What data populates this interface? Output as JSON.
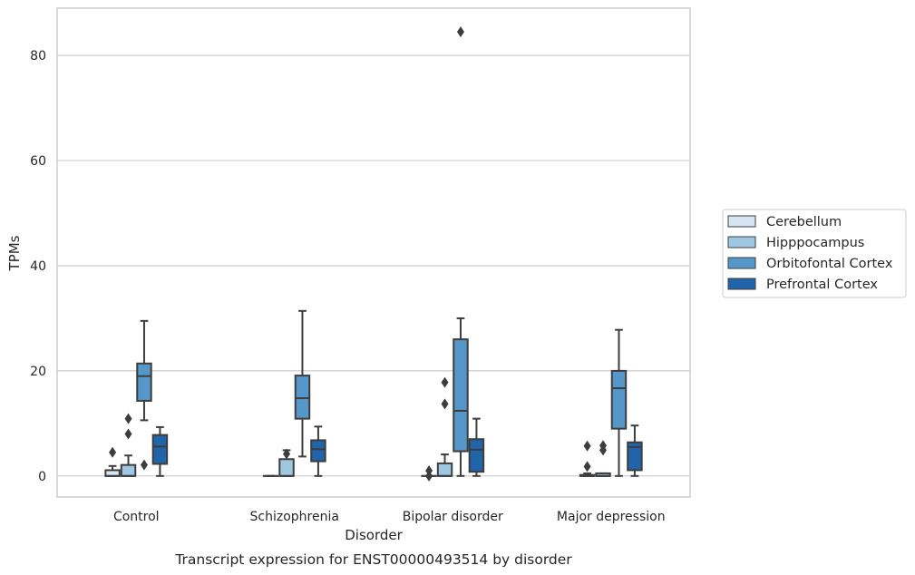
{
  "chart_data": {
    "type": "box",
    "caption": "Transcript expression for ENST00000493514 by disorder",
    "xlabel": "Disorder",
    "ylabel": "TPMs",
    "ylim": [
      -4,
      89
    ],
    "yticks": [
      0,
      20,
      40,
      60,
      80
    ],
    "grid": "horizontal",
    "legend_position": "right",
    "categories": [
      "Control",
      "Schizophrenia",
      "Bipolar disorder",
      "Major depression"
    ],
    "series": [
      {
        "name": "Cerebellum",
        "color": "#d6e5f3",
        "boxes": [
          {
            "whislo": 0,
            "q1": 0,
            "med": 0,
            "q3": 1.1,
            "whishi": 1.9,
            "fliers": [
              4.5
            ]
          },
          {
            "whislo": 0,
            "q1": 0,
            "med": 0,
            "q3": 0,
            "whishi": 0,
            "fliers": []
          },
          {
            "whislo": 0,
            "q1": 0,
            "med": 0,
            "q3": 0,
            "whishi": 0,
            "fliers": [
              0,
              1
            ]
          },
          {
            "whislo": 0,
            "q1": 0,
            "med": 0,
            "q3": 0.2,
            "whishi": 0.5,
            "fliers": [
              1.8,
              5.7
            ]
          }
        ]
      },
      {
        "name": "Hipppocampus",
        "color": "#9ec8e1",
        "boxes": [
          {
            "whislo": 0,
            "q1": 0,
            "med": 0,
            "q3": 2.1,
            "whishi": 3.9,
            "fliers": [
              8,
              10.9
            ]
          },
          {
            "whislo": 0,
            "q1": 0,
            "med": 0,
            "q3": 3.2,
            "whishi": 4.9,
            "fliers": [
              4.2
            ]
          },
          {
            "whislo": 0,
            "q1": 0,
            "med": 0,
            "q3": 2.4,
            "whishi": 4.1,
            "fliers": [
              13.7,
              17.8
            ]
          },
          {
            "whislo": 0,
            "q1": 0,
            "med": 0,
            "q3": 0.5,
            "whishi": 0.5,
            "fliers": [
              4.9,
              5.8
            ]
          }
        ]
      },
      {
        "name": "Orbitofontal Cortex",
        "color": "#5597c9",
        "boxes": [
          {
            "whislo": 10.6,
            "q1": 14.3,
            "med": 19.0,
            "q3": 21.4,
            "whishi": 29.5,
            "fliers": [
              2.1
            ]
          },
          {
            "whislo": 3.7,
            "q1": 10.9,
            "med": 14.8,
            "q3": 19.1,
            "whishi": 31.4,
            "fliers": []
          },
          {
            "whislo": 0,
            "q1": 4.7,
            "med": 12.4,
            "q3": 26.0,
            "whishi": 30.0,
            "fliers": [
              84.5
            ]
          },
          {
            "whislo": 0,
            "q1": 9.0,
            "med": 16.7,
            "q3": 20.0,
            "whishi": 27.8,
            "fliers": []
          }
        ]
      },
      {
        "name": "Prefrontal Cortex",
        "color": "#2164a9",
        "boxes": [
          {
            "whislo": 0,
            "q1": 2.3,
            "med": 5.6,
            "q3": 7.8,
            "whishi": 9.3,
            "fliers": []
          },
          {
            "whislo": 0,
            "q1": 2.8,
            "med": 5.1,
            "q3": 6.8,
            "whishi": 9.4,
            "fliers": []
          },
          {
            "whislo": 0,
            "q1": 0.8,
            "med": 5.0,
            "q3": 7.0,
            "whishi": 10.9,
            "fliers": []
          },
          {
            "whislo": 0,
            "q1": 1.1,
            "med": 5.5,
            "q3": 6.4,
            "whishi": 9.6,
            "fliers": []
          }
        ]
      }
    ]
  }
}
